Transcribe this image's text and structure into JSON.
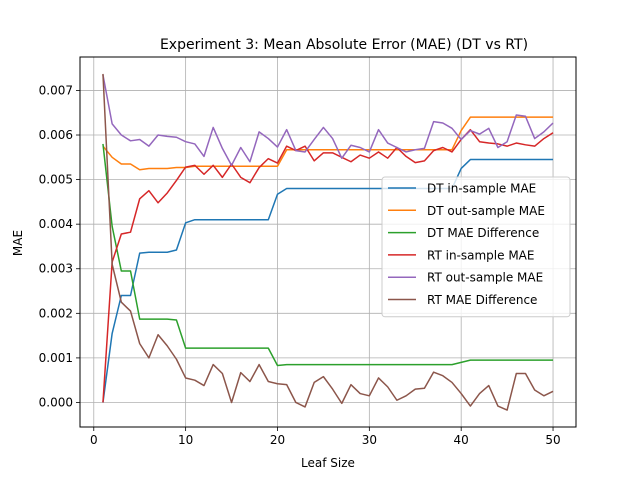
{
  "chart_data": {
    "type": "line",
    "title": "Experiment 3: Mean Absolute Error (MAE) (DT vs RT)",
    "xlabel": "Leaf Size",
    "ylabel": "MAE",
    "xlim": [
      -1.5,
      52.5
    ],
    "ylim": [
      -0.00055,
      0.00775
    ],
    "xticks": [
      0,
      10,
      20,
      30,
      40,
      50
    ],
    "yticks": [
      0.0,
      0.001,
      0.002,
      0.003,
      0.004,
      0.005,
      0.006,
      0.007
    ],
    "ytick_labels": [
      "0.000",
      "0.001",
      "0.002",
      "0.003",
      "0.004",
      "0.005",
      "0.006",
      "0.007"
    ],
    "grid": true,
    "legend_position": "center-right",
    "x": [
      1,
      2,
      3,
      4,
      5,
      6,
      7,
      8,
      9,
      10,
      11,
      12,
      13,
      14,
      15,
      16,
      17,
      18,
      19,
      20,
      21,
      22,
      23,
      24,
      25,
      26,
      27,
      28,
      29,
      30,
      31,
      32,
      33,
      34,
      35,
      36,
      37,
      38,
      39,
      40,
      41,
      42,
      43,
      44,
      45,
      46,
      47,
      48,
      49,
      50
    ],
    "series": [
      {
        "name": "DT in-sample MAE",
        "color": "#1f77b4",
        "values": [
          0.0,
          0.00155,
          0.0024,
          0.0024,
          0.00335,
          0.00337,
          0.00337,
          0.00337,
          0.00342,
          0.00403,
          0.0041,
          0.0041,
          0.0041,
          0.0041,
          0.0041,
          0.0041,
          0.0041,
          0.0041,
          0.0041,
          0.00467,
          0.0048,
          0.0048,
          0.0048,
          0.0048,
          0.0048,
          0.0048,
          0.0048,
          0.0048,
          0.0048,
          0.0048,
          0.0048,
          0.0048,
          0.0048,
          0.0048,
          0.0048,
          0.0048,
          0.0048,
          0.0048,
          0.0048,
          0.00525,
          0.00545,
          0.00545,
          0.00545,
          0.00545,
          0.00545,
          0.00545,
          0.00545,
          0.00545,
          0.00545,
          0.00545
        ]
      },
      {
        "name": "DT out-sample MAE",
        "color": "#ff7f0e",
        "values": [
          0.00575,
          0.0055,
          0.00535,
          0.00535,
          0.00522,
          0.00525,
          0.00525,
          0.00525,
          0.00527,
          0.00527,
          0.0053,
          0.0053,
          0.0053,
          0.0053,
          0.0053,
          0.0053,
          0.0053,
          0.0053,
          0.0053,
          0.0053,
          0.00567,
          0.00567,
          0.00567,
          0.00567,
          0.00567,
          0.00567,
          0.00567,
          0.00567,
          0.00567,
          0.00567,
          0.00567,
          0.00567,
          0.00567,
          0.00567,
          0.00567,
          0.00567,
          0.00567,
          0.00567,
          0.00567,
          0.0061,
          0.0064,
          0.0064,
          0.0064,
          0.0064,
          0.0064,
          0.0064,
          0.0064,
          0.0064,
          0.0064,
          0.0064
        ]
      },
      {
        "name": "DT MAE Difference",
        "color": "#2ca02c",
        "values": [
          0.0058,
          0.00395,
          0.00295,
          0.00295,
          0.00187,
          0.00187,
          0.00187,
          0.00187,
          0.00185,
          0.00122,
          0.00122,
          0.00122,
          0.00122,
          0.00122,
          0.00122,
          0.00122,
          0.00122,
          0.00122,
          0.00122,
          0.00083,
          0.00085,
          0.00085,
          0.00085,
          0.00085,
          0.00085,
          0.00085,
          0.00085,
          0.00085,
          0.00085,
          0.00085,
          0.00085,
          0.00085,
          0.00085,
          0.00085,
          0.00085,
          0.00085,
          0.00085,
          0.00085,
          0.00085,
          0.0009,
          0.00095,
          0.00095,
          0.00095,
          0.00095,
          0.00095,
          0.00095,
          0.00095,
          0.00095,
          0.00095,
          0.00095
        ]
      },
      {
        "name": "RT in-sample MAE",
        "color": "#d62728",
        "values": [
          0.0,
          0.00315,
          0.00378,
          0.00382,
          0.00457,
          0.00475,
          0.00448,
          0.0047,
          0.00498,
          0.00528,
          0.00532,
          0.00512,
          0.00532,
          0.00505,
          0.00535,
          0.00505,
          0.00493,
          0.00527,
          0.00547,
          0.00537,
          0.00575,
          0.00565,
          0.00575,
          0.00542,
          0.0056,
          0.0056,
          0.0055,
          0.0054,
          0.00555,
          0.00548,
          0.00562,
          0.00548,
          0.00572,
          0.00552,
          0.00538,
          0.00542,
          0.00565,
          0.00572,
          0.00562,
          0.0059,
          0.00612,
          0.00585,
          0.00582,
          0.0058,
          0.00575,
          0.00582,
          0.00578,
          0.00575,
          0.00592,
          0.00605
        ]
      },
      {
        "name": "RT out-sample MAE",
        "color": "#9467bd",
        "values": [
          0.00735,
          0.00625,
          0.006,
          0.00587,
          0.0059,
          0.00575,
          0.006,
          0.00597,
          0.00595,
          0.00585,
          0.0058,
          0.00552,
          0.00617,
          0.0057,
          0.00532,
          0.00572,
          0.0054,
          0.00607,
          0.00592,
          0.00573,
          0.00612,
          0.00565,
          0.00562,
          0.0059,
          0.00617,
          0.00592,
          0.00548,
          0.00577,
          0.00572,
          0.00562,
          0.00612,
          0.00582,
          0.00572,
          0.00562,
          0.00567,
          0.0057,
          0.0063,
          0.00627,
          0.00615,
          0.0059,
          0.0061,
          0.00602,
          0.00615,
          0.00572,
          0.00585,
          0.00645,
          0.00642,
          0.00592,
          0.00607,
          0.00627
        ]
      },
      {
        "name": "RT MAE Difference",
        "color": "#8c564b",
        "values": [
          0.00737,
          0.0031,
          0.00225,
          0.00205,
          0.00132,
          0.001,
          0.00152,
          0.00127,
          0.00097,
          0.00055,
          0.0005,
          0.00038,
          0.00085,
          0.00065,
          0.0,
          0.00067,
          0.00047,
          0.00085,
          0.00047,
          0.00042,
          0.0004,
          0.0,
          -0.0001,
          0.00045,
          0.00058,
          0.0003,
          -2e-05,
          0.0004,
          0.0002,
          0.00015,
          0.00055,
          0.00035,
          5e-05,
          0.00015,
          0.0003,
          0.00032,
          0.00068,
          0.0006,
          0.00045,
          0.0002,
          -8e-05,
          0.0002,
          0.00038,
          -8e-05,
          -0.00017,
          0.00065,
          0.00065,
          0.00028,
          0.00015,
          0.00025
        ]
      }
    ]
  }
}
